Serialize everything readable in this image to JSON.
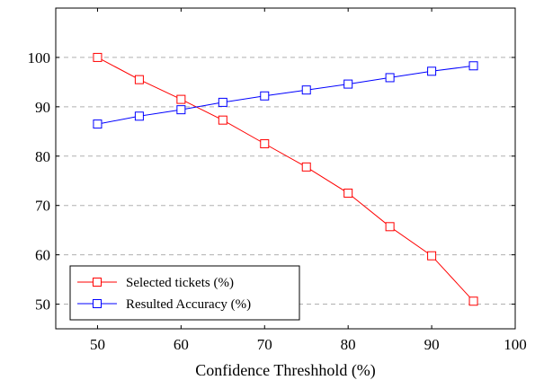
{
  "chart_data": {
    "type": "line",
    "title": "",
    "xlabel": "Confidence Threshhold (%)",
    "ylabel": "",
    "xlim": [
      45,
      100
    ],
    "ylim": [
      45,
      110
    ],
    "xticks": [
      50,
      60,
      70,
      80,
      90,
      100
    ],
    "yticks": [
      50,
      60,
      70,
      80,
      90,
      100
    ],
    "grid": "horizontal dashed",
    "legend_position": "bottom-left",
    "x": [
      50,
      55,
      60,
      65,
      70,
      75,
      80,
      85,
      90,
      95
    ],
    "series": [
      {
        "name": "Selected tickets (%)",
        "color": "#ff0000",
        "marker": "square",
        "values": [
          100,
          95.5,
          91.5,
          87.3,
          82.5,
          77.8,
          72.5,
          65.7,
          59.8,
          50.6
        ]
      },
      {
        "name": "Resulted Accuracy (%)",
        "color": "#0000ff",
        "marker": "square",
        "values": [
          86.5,
          88.1,
          89.4,
          90.9,
          92.2,
          93.4,
          94.6,
          95.9,
          97.2,
          98.3
        ]
      }
    ]
  }
}
